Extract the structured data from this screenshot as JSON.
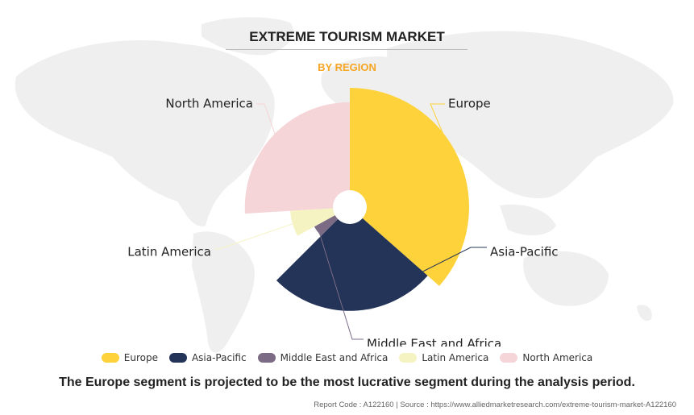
{
  "title": "EXTREME TOURISM MARKET",
  "subtitle": "BY REGION",
  "colors": {
    "subtitle": "#F5A623",
    "map": "#EFEFEF"
  },
  "chart_data": {
    "type": "pie",
    "variant": "rose",
    "categories": [
      "Europe",
      "Asia-Pacific",
      "Middle East and Africa",
      "Latin America",
      "North America"
    ],
    "values": [
      36.5,
      26.0,
      4.5,
      7.0,
      26.0
    ],
    "radius_scale": [
      1.0,
      0.87,
      0.34,
      0.5,
      0.88
    ],
    "colors": [
      "#FDD23A",
      "#243458",
      "#7B6B84",
      "#F6F3C3",
      "#F5D5D8"
    ],
    "legend_position": "bottom"
  },
  "legend": {
    "items": [
      "Europe",
      "Asia-Pacific",
      "Middle East and Africa",
      "Latin America",
      "North America"
    ]
  },
  "caption": "The Europe segment is projected to be the most lucrative segment during the analysis period.",
  "footer": "Report Code : A122160  |  Source : https://www.alliedmarketresearch.com/extreme-tourism-market-A122160"
}
